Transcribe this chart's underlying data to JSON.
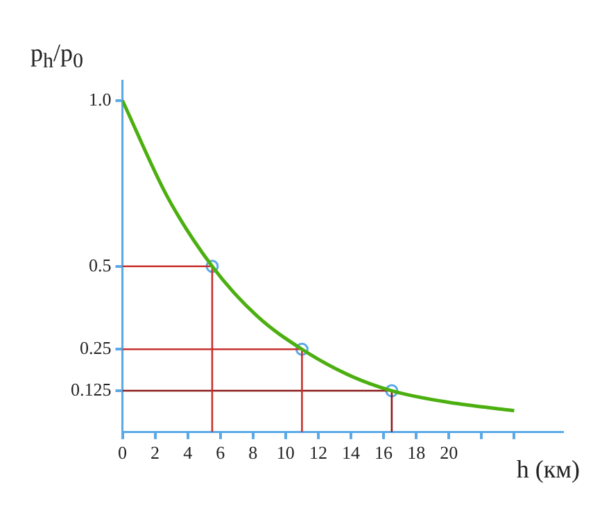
{
  "chart_data": {
    "type": "line",
    "xlabel": "h (км)",
    "ylabel": "p$_{h}$/p$_{0}$",
    "xlim": [
      0,
      27
    ],
    "ylim": [
      0,
      1.06
    ],
    "xticks": [
      0,
      2,
      4,
      6,
      8,
      10,
      12,
      14,
      16,
      18,
      20,
      {
        "value": 22,
        "label": null
      },
      {
        "value": 24,
        "label": null
      }
    ],
    "yticks": [
      0.125,
      0.25,
      0.5,
      {
        "value": 1,
        "label": "1.0"
      }
    ],
    "grid": false,
    "legend": false,
    "marker": "none",
    "line_style": "solid",
    "series": [
      {
        "type": "line",
        "color": "#4caf10",
        "x": [
          0,
          2.75,
          5.5,
          8.25,
          11,
          13.75,
          16.5,
          20,
          24
        ],
        "values": [
          1,
          0.71,
          0.5,
          0.35,
          0.25,
          0.175,
          0.125,
          0.09,
          0.065
        ]
      },
      {
        "type": "line",
        "color": "#c8302c",
        "x": [
          0,
          5.5,
          5.5
        ],
        "values": [
          0.5,
          0.5,
          0
        ]
      },
      {
        "type": "line",
        "color": "#c8302c",
        "x": [
          0,
          11,
          11
        ],
        "values": [
          0.25,
          0.25,
          0
        ]
      },
      {
        "type": "line",
        "color": "#8a1a1a",
        "x": [
          0,
          16.5,
          16.5
        ],
        "values": [
          0.125,
          0.125,
          0
        ]
      },
      {
        "type": "scatter",
        "color": "#5aa9e6",
        "marker": "circle",
        "x": [
          5.5,
          11,
          16.5
        ],
        "values": [
          0.5,
          0.25,
          0.125
        ]
      }
    ]
  }
}
